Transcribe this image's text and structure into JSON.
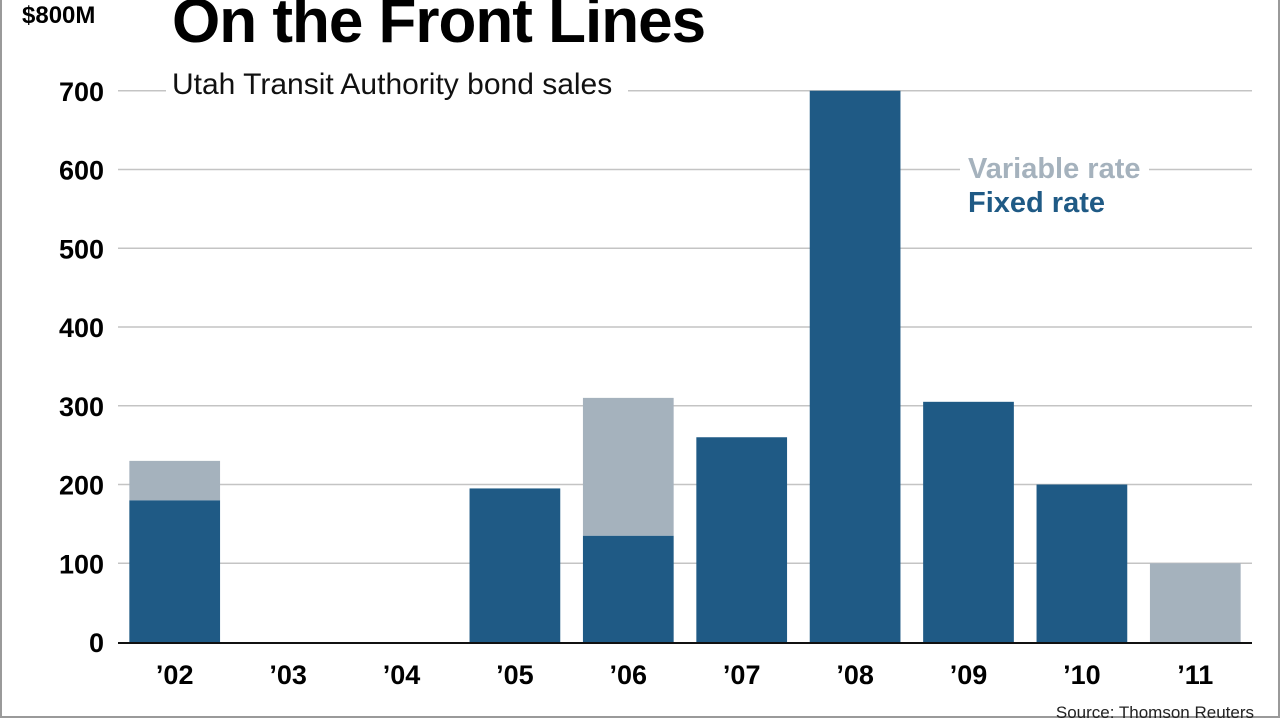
{
  "chart_data": {
    "type": "bar",
    "stacked": true,
    "title": "On the Front Lines",
    "subtitle": "Utah Transit Authority bond sales",
    "unit_label": "$800M",
    "source": "Source: Thomson Reuters",
    "categories": [
      "’02",
      "’03",
      "’04",
      "’05",
      "’06",
      "’07",
      "’08",
      "’09",
      "’10",
      "’11"
    ],
    "series": [
      {
        "name": "Fixed rate",
        "color": "#1f5a85",
        "values": [
          180,
          0,
          0,
          195,
          135,
          260,
          700,
          305,
          200,
          0
        ]
      },
      {
        "name": "Variable rate",
        "color": "#a5b2bd",
        "values": [
          50,
          0,
          0,
          0,
          175,
          0,
          0,
          0,
          0,
          100
        ]
      }
    ],
    "ylim": [
      0,
      800
    ],
    "yticks": [
      "0",
      "100",
      "200",
      "300",
      "400",
      "500",
      "600",
      "700"
    ],
    "grid": true,
    "legend_position": "top-right"
  }
}
